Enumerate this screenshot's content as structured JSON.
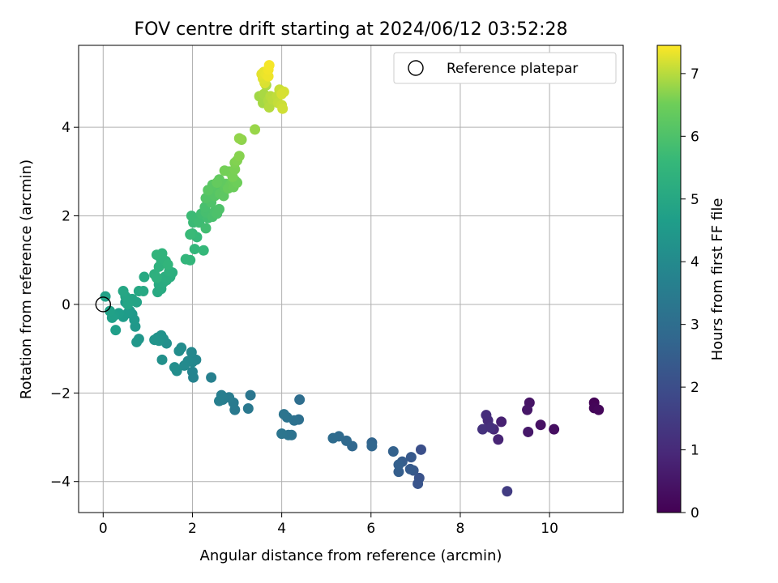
{
  "chart_data": {
    "type": "scatter",
    "title": "FOV centre drift starting at 2024/06/12 03:52:28",
    "xlabel": "Angular distance from reference (arcmin)",
    "ylabel": "Rotation from reference (arcmin)",
    "xlim": [
      -0.55,
      11.65
    ],
    "ylim": [
      -4.7,
      5.85
    ],
    "x_ticks": [
      0,
      2,
      4,
      6,
      8,
      10
    ],
    "y_ticks": [
      -4,
      -2,
      0,
      2,
      4
    ],
    "grid": true,
    "legend": {
      "placement": "top-right",
      "entries": [
        "Reference platepar"
      ]
    },
    "reference_point": {
      "x": 0,
      "y": 0
    },
    "colorbar": {
      "label": "Hours from first FF file",
      "range": [
        0,
        7.45
      ],
      "ticks": [
        0,
        1,
        2,
        3,
        4,
        5,
        6,
        7
      ],
      "colormap": "viridis"
    },
    "points": [
      [
        11.0,
        -2.22,
        0.05
      ],
      [
        11.0,
        -2.34,
        0.1
      ],
      [
        11.1,
        -2.38,
        0.15
      ],
      [
        10.1,
        -2.82,
        0.3
      ],
      [
        9.8,
        -2.72,
        0.38
      ],
      [
        9.55,
        -2.22,
        0.45
      ],
      [
        9.5,
        -2.38,
        0.5
      ],
      [
        9.52,
        -2.88,
        0.55
      ],
      [
        9.05,
        -4.22,
        1.5
      ],
      [
        8.92,
        -2.65,
        0.75
      ],
      [
        8.85,
        -3.05,
        0.85
      ],
      [
        8.75,
        -2.82,
        0.95
      ],
      [
        8.62,
        -2.62,
        1.05
      ],
      [
        8.58,
        -2.5,
        1.1
      ],
      [
        8.5,
        -2.82,
        1.2
      ],
      [
        8.68,
        -2.78,
        1.15
      ],
      [
        7.12,
        -3.28,
        2.05
      ],
      [
        7.08,
        -3.92,
        2.15
      ],
      [
        7.05,
        -4.05,
        2.2
      ],
      [
        6.95,
        -3.75,
        2.3
      ],
      [
        6.9,
        -3.45,
        2.35
      ],
      [
        6.88,
        -3.72,
        2.4
      ],
      [
        6.7,
        -3.55,
        2.45
      ],
      [
        6.62,
        -3.78,
        2.5
      ],
      [
        6.62,
        -3.62,
        2.55
      ],
      [
        6.5,
        -3.32,
        2.6
      ],
      [
        6.02,
        -3.12,
        2.7
      ],
      [
        6.02,
        -3.2,
        2.75
      ],
      [
        5.58,
        -3.2,
        2.8
      ],
      [
        5.45,
        -3.08,
        2.85
      ],
      [
        5.28,
        -2.98,
        2.9
      ],
      [
        5.15,
        -3.02,
        2.95
      ],
      [
        4.4,
        -2.15,
        3.0
      ],
      [
        4.38,
        -2.6,
        3.05
      ],
      [
        4.28,
        -2.62,
        3.1
      ],
      [
        4.22,
        -2.95,
        3.15
      ],
      [
        4.15,
        -2.95,
        3.18
      ],
      [
        4.12,
        -2.55,
        3.2
      ],
      [
        4.05,
        -2.48,
        3.22
      ],
      [
        4.0,
        -2.92,
        3.25
      ],
      [
        3.3,
        -2.05,
        3.3
      ],
      [
        3.25,
        -2.35,
        3.35
      ],
      [
        2.95,
        -2.38,
        3.4
      ],
      [
        2.92,
        -2.22,
        3.45
      ],
      [
        2.82,
        -2.1,
        3.5
      ],
      [
        2.68,
        -2.15,
        3.55
      ],
      [
        2.65,
        -2.05,
        3.58
      ],
      [
        2.6,
        -2.18,
        3.6
      ],
      [
        2.42,
        -1.65,
        3.65
      ],
      [
        2.02,
        -1.65,
        3.75
      ],
      [
        2.0,
        -1.52,
        3.8
      ],
      [
        2.08,
        -1.25,
        3.85
      ],
      [
        2.0,
        -1.3,
        3.9
      ],
      [
        1.98,
        -1.08,
        3.92
      ],
      [
        1.9,
        -1.28,
        3.95
      ],
      [
        1.82,
        -1.38,
        4.0
      ],
      [
        1.75,
        -0.98,
        4.05
      ],
      [
        1.7,
        -1.05,
        4.08
      ],
      [
        1.65,
        -1.5,
        4.1
      ],
      [
        1.6,
        -1.42,
        4.12
      ],
      [
        1.42,
        -0.88,
        4.15
      ],
      [
        1.35,
        -0.78,
        4.18
      ],
      [
        1.32,
        -1.25,
        4.2
      ],
      [
        1.3,
        -0.7,
        4.25
      ],
      [
        1.25,
        -0.82,
        4.28
      ],
      [
        1.22,
        -0.75,
        4.3
      ],
      [
        1.15,
        -0.8,
        4.32
      ],
      [
        0.8,
        -0.78,
        4.4
      ],
      [
        0.75,
        -0.85,
        4.42
      ],
      [
        0.72,
        -0.5,
        4.45
      ],
      [
        0.7,
        -0.35,
        4.48
      ],
      [
        0.65,
        -0.22,
        4.5
      ],
      [
        0.6,
        -0.15,
        4.52
      ],
      [
        0.55,
        -0.2,
        4.55
      ],
      [
        0.5,
        0.05,
        4.58
      ],
      [
        0.45,
        -0.28,
        4.6
      ],
      [
        0.35,
        -0.2,
        4.65
      ],
      [
        0.28,
        -0.58,
        4.68
      ],
      [
        0.25,
        -0.25,
        4.7
      ],
      [
        0.2,
        -0.3,
        4.72
      ],
      [
        0.15,
        -0.15,
        4.75
      ],
      [
        0.05,
        0.18,
        4.8
      ],
      [
        0.75,
        0.05,
        4.85
      ],
      [
        0.65,
        0.12,
        4.88
      ],
      [
        0.55,
        0.0,
        4.9
      ],
      [
        0.5,
        0.18,
        4.92
      ],
      [
        0.45,
        0.3,
        4.95
      ],
      [
        0.8,
        0.3,
        5.0
      ],
      [
        0.9,
        0.3,
        5.02
      ],
      [
        0.92,
        0.62,
        5.05
      ],
      [
        1.22,
        0.28,
        5.08
      ],
      [
        1.25,
        0.45,
        5.1
      ],
      [
        1.3,
        0.35,
        5.12
      ],
      [
        1.35,
        0.5,
        5.15
      ],
      [
        1.42,
        0.55,
        5.18
      ],
      [
        1.38,
        0.62,
        5.2
      ],
      [
        1.5,
        0.62,
        5.22
      ],
      [
        1.55,
        0.72,
        5.25
      ],
      [
        1.48,
        0.75,
        5.28
      ],
      [
        1.15,
        0.68,
        5.3
      ],
      [
        1.2,
        0.6,
        5.32
      ],
      [
        1.25,
        0.85,
        5.35
      ],
      [
        1.3,
        1.0,
        5.38
      ],
      [
        1.4,
        0.98,
        5.4
      ],
      [
        1.32,
        1.15,
        5.42
      ],
      [
        1.2,
        1.12,
        5.45
      ],
      [
        1.45,
        0.9,
        5.48
      ],
      [
        1.85,
        1.02,
        5.5
      ],
      [
        1.95,
        1.0,
        5.52
      ],
      [
        2.05,
        1.25,
        5.55
      ],
      [
        2.25,
        1.22,
        5.58
      ],
      [
        2.1,
        1.52,
        5.6
      ],
      [
        2.0,
        1.6,
        5.62
      ],
      [
        1.95,
        1.58,
        5.65
      ],
      [
        2.02,
        1.85,
        5.68
      ],
      [
        1.98,
        2.0,
        5.7
      ],
      [
        2.1,
        1.92,
        5.72
      ],
      [
        2.15,
        1.85,
        5.75
      ],
      [
        2.2,
        2.05,
        5.78
      ],
      [
        2.3,
        1.72,
        5.8
      ],
      [
        2.35,
        1.95,
        5.82
      ],
      [
        2.38,
        2.05,
        5.85
      ],
      [
        2.3,
        2.08,
        5.88
      ],
      [
        2.28,
        2.2,
        5.9
      ],
      [
        2.45,
        1.98,
        5.92
      ],
      [
        2.5,
        2.1,
        5.95
      ],
      [
        2.55,
        2.05,
        5.98
      ],
      [
        2.6,
        2.15,
        6.0
      ],
      [
        2.42,
        2.3,
        6.02
      ],
      [
        2.35,
        2.42,
        6.05
      ],
      [
        2.3,
        2.4,
        6.08
      ],
      [
        2.4,
        2.55,
        6.1
      ],
      [
        2.5,
        2.45,
        6.12
      ],
      [
        2.55,
        2.6,
        6.15
      ],
      [
        2.45,
        2.7,
        6.18
      ],
      [
        2.35,
        2.58,
        6.2
      ],
      [
        2.62,
        2.5,
        6.22
      ],
      [
        2.7,
        2.45,
        6.25
      ],
      [
        2.72,
        2.65,
        6.28
      ],
      [
        2.75,
        2.72,
        6.3
      ],
      [
        2.6,
        2.82,
        6.32
      ],
      [
        2.55,
        2.75,
        6.35
      ],
      [
        2.85,
        2.7,
        6.38
      ],
      [
        2.8,
        2.62,
        6.4
      ],
      [
        2.9,
        2.78,
        6.42
      ],
      [
        2.92,
        2.65,
        6.45
      ],
      [
        2.95,
        2.8,
        6.48
      ],
      [
        3.0,
        2.75,
        6.5
      ],
      [
        2.82,
        3.0,
        6.52
      ],
      [
        2.72,
        3.02,
        6.55
      ],
      [
        2.9,
        2.88,
        6.58
      ],
      [
        2.95,
        3.05,
        6.6
      ],
      [
        2.95,
        3.2,
        6.62
      ],
      [
        3.0,
        3.25,
        6.65
      ],
      [
        3.05,
        3.35,
        6.68
      ],
      [
        3.1,
        3.72,
        6.72
      ],
      [
        3.05,
        3.75,
        6.75
      ],
      [
        3.4,
        3.95,
        6.8
      ],
      [
        3.5,
        4.7,
        6.85
      ],
      [
        3.58,
        4.55,
        6.88
      ],
      [
        3.6,
        4.75,
        6.9
      ],
      [
        3.65,
        4.95,
        6.92
      ],
      [
        3.7,
        4.6,
        6.95
      ],
      [
        3.72,
        4.45,
        6.98
      ],
      [
        3.75,
        4.7,
        7.0
      ],
      [
        3.8,
        4.62,
        7.02
      ],
      [
        3.9,
        4.7,
        7.05
      ],
      [
        3.92,
        4.55,
        7.08
      ],
      [
        3.95,
        4.85,
        7.1
      ],
      [
        4.0,
        4.5,
        7.12
      ],
      [
        4.02,
        4.42,
        7.15
      ],
      [
        4.05,
        4.8,
        7.18
      ],
      [
        4.0,
        4.75,
        7.2
      ],
      [
        3.62,
        5.0,
        7.22
      ],
      [
        3.58,
        5.1,
        7.25
      ],
      [
        3.55,
        5.2,
        7.28
      ],
      [
        3.6,
        5.25,
        7.3
      ],
      [
        3.65,
        5.2,
        7.32
      ],
      [
        3.7,
        5.15,
        7.35
      ],
      [
        3.7,
        5.3,
        7.38
      ],
      [
        3.72,
        5.4,
        7.4
      ]
    ]
  }
}
